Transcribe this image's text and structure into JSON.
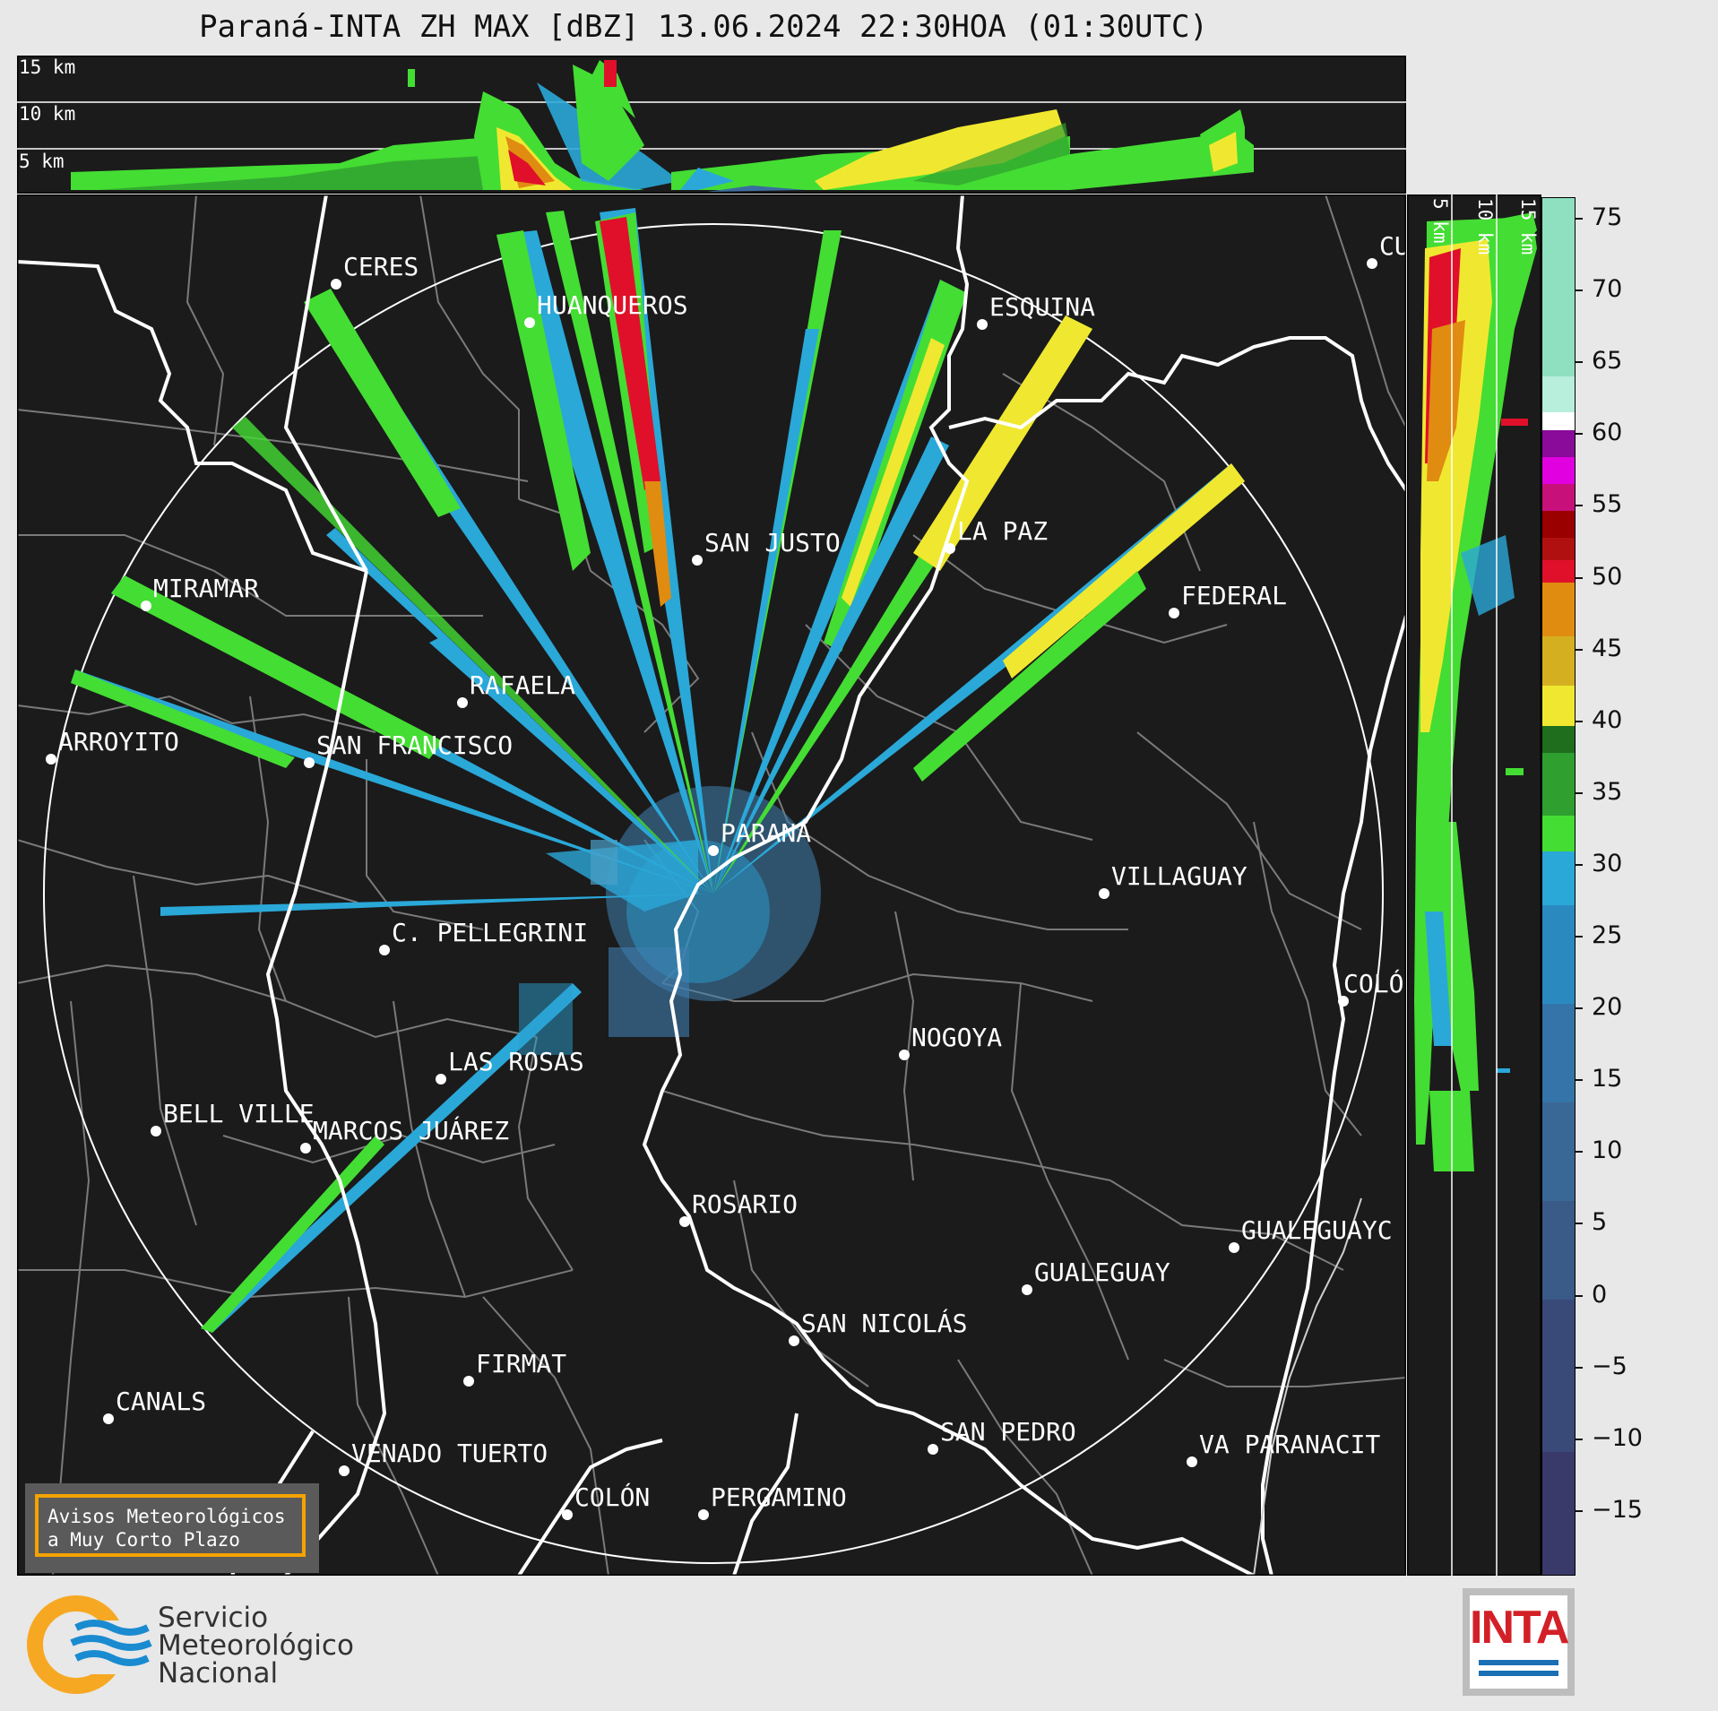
{
  "title": "Paraná-INTA ZH MAX [dBZ] 13.06.2024 22:30HOA (01:30UTC)",
  "top_panel": {
    "height_labels": [
      "15 km",
      "10 km",
      "5 km"
    ]
  },
  "side_panel": {
    "height_labels": [
      "5 km",
      "10 km",
      "15 km"
    ]
  },
  "colorbar": {
    "ticks": [
      "75",
      "70",
      "65",
      "60",
      "55",
      "50",
      "45",
      "40",
      "35",
      "30",
      "25",
      "20",
      "15",
      "10",
      "5",
      "0",
      "−5",
      "−10",
      "−15"
    ],
    "colors": {
      "cyan_pale": "#8fe0c0",
      "white": "#ffffff",
      "purple": "#8a0a9a",
      "magenta": "#e000e0",
      "dark_red": "#9a0000",
      "red": "#e0102a",
      "orange": "#e08c10",
      "yellow": "#f0e830",
      "dark_green": "#1e6e1e",
      "green": "#44dd33",
      "blue": "#2aa8d8",
      "navy": "#3a3a6a"
    }
  },
  "cities": [
    {
      "name": "CERES"
    },
    {
      "name": "HUANQUEROS"
    },
    {
      "name": "ESQUINA"
    },
    {
      "name": "CU"
    },
    {
      "name": "SAN JUSTO"
    },
    {
      "name": "LA PAZ"
    },
    {
      "name": "MIRAMAR"
    },
    {
      "name": "FEDERAL"
    },
    {
      "name": "RAFAELA"
    },
    {
      "name": "ARROYITO"
    },
    {
      "name": "SAN FRANCISCO"
    },
    {
      "name": "PARANÁ"
    },
    {
      "name": "VILLAGUAY"
    },
    {
      "name": "C. PELLEGRINI"
    },
    {
      "name": "COLÓ"
    },
    {
      "name": "NOGOYA"
    },
    {
      "name": "LAS ROSAS"
    },
    {
      "name": "BELL VILLE"
    },
    {
      "name": "MARCOS JUÁREZ"
    },
    {
      "name": "ROSARIO"
    },
    {
      "name": "GUALEGUAYC"
    },
    {
      "name": "GUALEGUAY"
    },
    {
      "name": "SAN NICOLÁS"
    },
    {
      "name": "FIRMAT"
    },
    {
      "name": "CANALS"
    },
    {
      "name": "SAN PEDRO"
    },
    {
      "name": "VA PARANACIT"
    },
    {
      "name": "VENADO TUERTO"
    },
    {
      "name": "COLÓN"
    },
    {
      "name": "PERGAMINO"
    }
  ],
  "warning_box": {
    "line1": "Avisos Meteorológicos",
    "line2": "a Muy Corto Plazo",
    "border_color": "#f4a300"
  },
  "footer": {
    "smn_line1": "Servicio",
    "smn_line2": "Meteorológico",
    "smn_line3": "Nacional",
    "inta_text": "INTA",
    "smn_colors": {
      "sun": "#f7a823",
      "waves": "#1a8bd0"
    }
  }
}
